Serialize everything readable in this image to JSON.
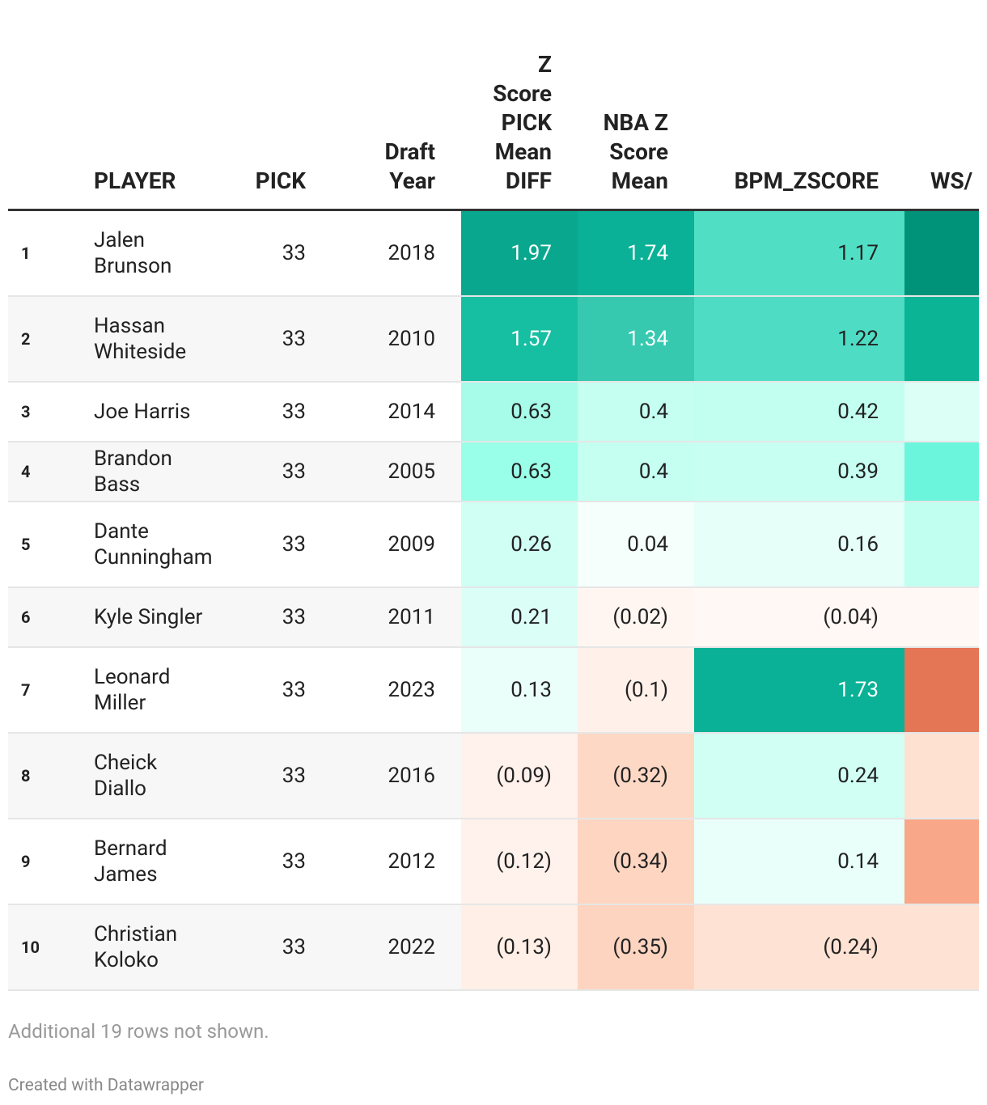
{
  "table": {
    "headers": [
      "",
      "PLAYER",
      "PICK",
      "Draft Year",
      "Z Score PICK Mean DIFF",
      "NBA Z Score Mean",
      "BPM_ZSCORE",
      "WS/"
    ],
    "rows": [
      [
        "1",
        "Jalen Brunson",
        "33",
        "2018",
        "1.97",
        "1.74",
        "1.17",
        ""
      ],
      [
        "2",
        "Hassan Whiteside",
        "33",
        "2010",
        "1.57",
        "1.34",
        "1.22",
        ""
      ],
      [
        "3",
        "Joe Harris",
        "33",
        "2014",
        "0.63",
        "0.4",
        "0.42",
        ""
      ],
      [
        "4",
        "Brandon Bass",
        "33",
        "2005",
        "0.63",
        "0.4",
        "0.39",
        ""
      ],
      [
        "5",
        "Dante Cunningham",
        "33",
        "2009",
        "0.26",
        "0.04",
        "0.16",
        ""
      ],
      [
        "6",
        "Kyle Singler",
        "33",
        "2011",
        "0.21",
        "(0.02)",
        "(0.04)",
        ""
      ],
      [
        "7",
        "Leonard Miller",
        "33",
        "2023",
        "0.13",
        "(0.1)",
        "1.73",
        ""
      ],
      [
        "8",
        "Cheick Diallo",
        "33",
        "2016",
        "(0.09)",
        "(0.32)",
        "0.24",
        ""
      ],
      [
        "9",
        "Bernard James",
        "33",
        "2012",
        "(0.12)",
        "(0.34)",
        "0.14",
        ""
      ],
      [
        "10",
        "Christian Koloko",
        "33",
        "2022",
        "(0.13)",
        "(0.35)",
        "(0.24)",
        ""
      ]
    ],
    "cell_colors": [
      [
        "#09a88e",
        "#0ab196",
        "#50dfc5",
        "#00937a"
      ],
      [
        "#17bfa2",
        "#37c9b0",
        "#4fdcc4",
        "#0cb496"
      ],
      [
        "#a6fbe9",
        "#c4fff1",
        "#c2fff0",
        "#dcfff6"
      ],
      [
        "#9affe8",
        "#c4fff1",
        "#c7fff2",
        "#6af5dc"
      ],
      [
        "#d0fff4",
        "#f5fffc",
        "#e6fff9",
        "#c1fff0"
      ],
      [
        "#dbfff7",
        "#fff6f1",
        "#fff8f4",
        "#fff8f4"
      ],
      [
        "#eafffa",
        "#fff1ea",
        "#0ab196",
        "#e47555"
      ],
      [
        "#fff1eb",
        "#fdd8c5",
        "#d1fff4",
        "#fee1d1"
      ],
      [
        "#fff2ec",
        "#fdd5c1",
        "#e9fffa",
        "#f8a788"
      ],
      [
        "#ffefe6",
        "#fdd4c0",
        "#fee3d4",
        "#fee3d4"
      ]
    ]
  },
  "notes": "Additional 19 rows not shown.",
  "footer": "Created with Datawrapper"
}
